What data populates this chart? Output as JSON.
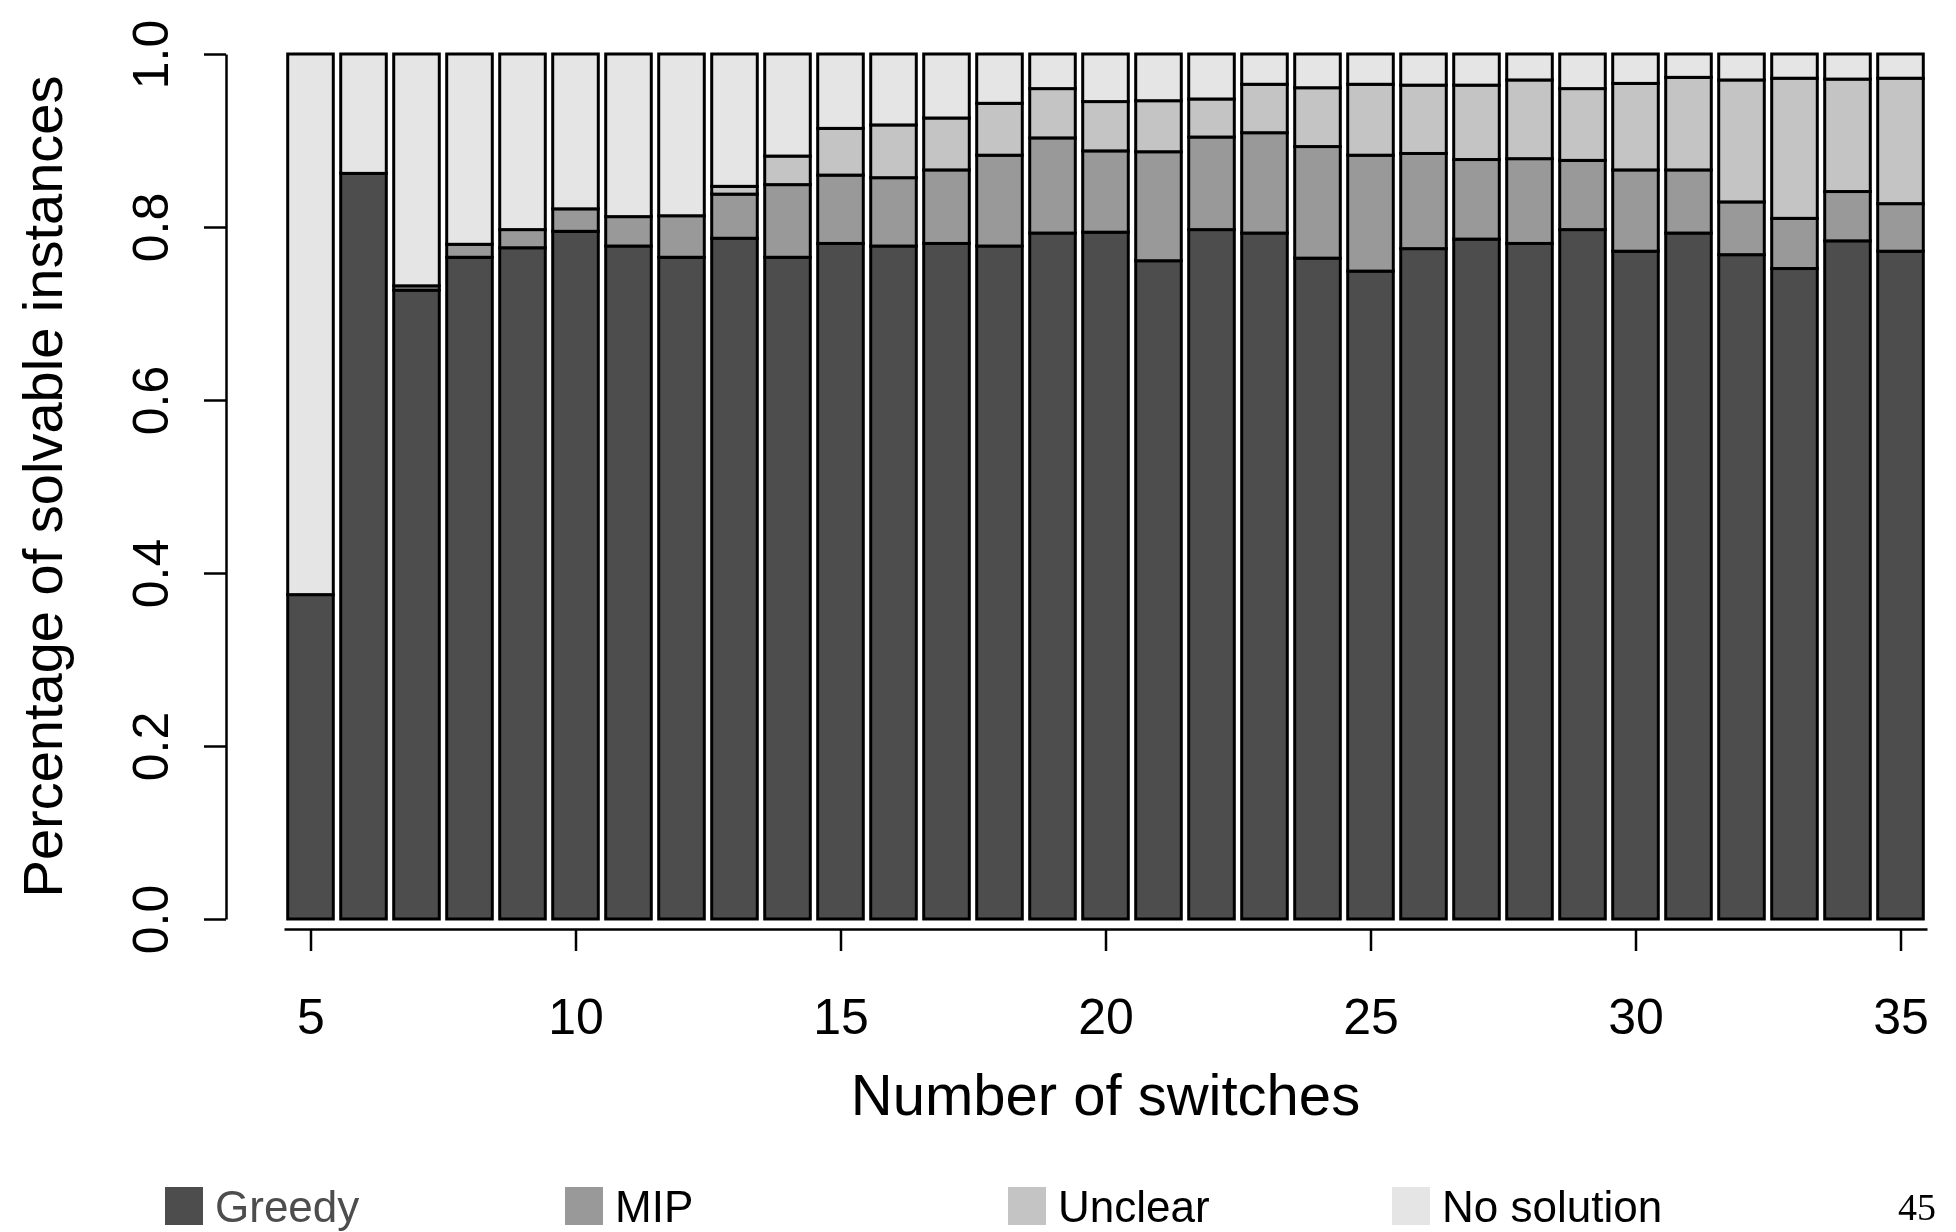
{
  "chart_data": {
    "type": "bar",
    "stacked": true,
    "xlabel": "Number of switches",
    "ylabel": "Percentage of solvable instances",
    "x": [
      5,
      6,
      7,
      8,
      9,
      10,
      11,
      12,
      13,
      14,
      15,
      16,
      17,
      18,
      19,
      20,
      21,
      22,
      23,
      24,
      25,
      26,
      27,
      28,
      29,
      30,
      31,
      32,
      33,
      34,
      35
    ],
    "xlim": [
      4.5,
      35.5
    ],
    "xticks": [
      5,
      10,
      15,
      20,
      25,
      30,
      35
    ],
    "ylim": [
      0,
      1
    ],
    "yticks": [
      {
        "value": 0,
        "label": "0.0"
      },
      0.2,
      0.4,
      0.6,
      0.8,
      {
        "value": 1,
        "label": "1.0"
      }
    ],
    "legend": "bottom",
    "grid": false,
    "series": [
      {
        "name": "Greedy",
        "color": "#4d4d4d",
        "values": [
          0.375,
          0.862,
          0.727,
          0.765,
          0.776,
          0.795,
          0.778,
          0.765,
          0.787,
          0.765,
          0.781,
          0.778,
          0.781,
          0.778,
          0.793,
          0.794,
          0.761,
          0.797,
          0.793,
          0.764,
          0.749,
          0.775,
          0.786,
          0.781,
          0.797,
          0.772,
          0.793,
          0.768,
          0.752,
          0.784,
          0.772
        ]
      },
      {
        "name": "MIP",
        "color": "#999999",
        "values": [
          0,
          0,
          0.005,
          0.015,
          0.021,
          0.026,
          0.034,
          0.048,
          0.051,
          0.084,
          0.079,
          0.079,
          0.085,
          0.105,
          0.11,
          0.094,
          0.126,
          0.107,
          0.116,
          0.129,
          0.134,
          0.11,
          0.092,
          0.098,
          0.08,
          0.094,
          0.073,
          0.061,
          0.058,
          0.057,
          0.055
        ]
      },
      {
        "name": "Unclear",
        "color": "#c4c4c4",
        "values": [
          0,
          0,
          0,
          0,
          0,
          0,
          0,
          0,
          0.009,
          0.033,
          0.054,
          0.061,
          0.06,
          0.06,
          0.057,
          0.057,
          0.059,
          0.044,
          0.056,
          0.068,
          0.082,
          0.079,
          0.086,
          0.091,
          0.083,
          0.1,
          0.107,
          0.141,
          0.162,
          0.13,
          0.145
        ]
      },
      {
        "name": "No solution",
        "color": "#e5e5e5",
        "values": [
          0.625,
          0.138,
          0.268,
          0.22,
          0.203,
          0.179,
          0.188,
          0.187,
          0.153,
          0.118,
          0.086,
          0.082,
          0.074,
          0.057,
          0.04,
          0.055,
          0.054,
          0.052,
          0.035,
          0.039,
          0.035,
          0.036,
          0.036,
          0.03,
          0.04,
          0.034,
          0.027,
          0.03,
          0.028,
          0.029,
          0.028
        ]
      }
    ],
    "annotations": [
      "45"
    ]
  }
}
